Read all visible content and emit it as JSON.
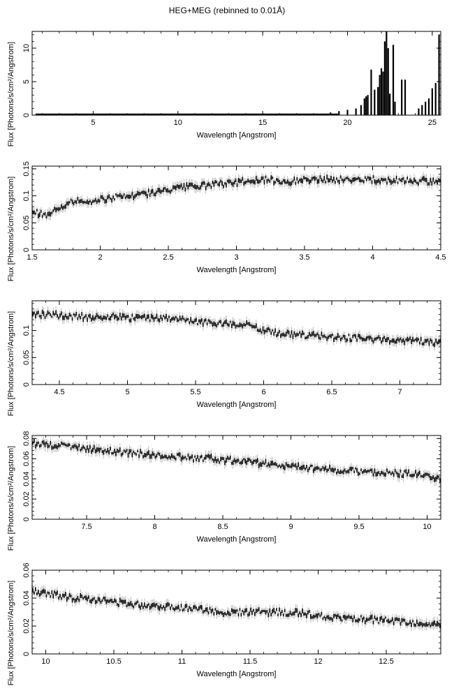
{
  "title": "HEG+MEG (rebinned to 0.01Å)",
  "chart_data": [
    {
      "type": "line",
      "xlabel": "Wavelength [Angstrom]",
      "ylabel": "Flux [Photons/s/cm²/Angstrom]",
      "xlim": [
        1.4,
        25.5
      ],
      "ylim": [
        0,
        12.5
      ],
      "xticks": [
        5,
        10,
        15,
        20,
        25
      ],
      "xtick_labels": [
        "5",
        "10",
        "15",
        "20",
        "25"
      ],
      "yticks": [
        0,
        5,
        10
      ],
      "ytick_labels": [
        "0",
        "5",
        "10"
      ],
      "series": [
        {
          "x": [
            1.5,
            3,
            5,
            7,
            10,
            13,
            15,
            17,
            18,
            19,
            19.5,
            20,
            20.5,
            20.8,
            21,
            21.1,
            21.2,
            21.4,
            21.6,
            21.8,
            21.9,
            22.0,
            22.1,
            22.2,
            22.3,
            22.4,
            22.5,
            22.7,
            22.8,
            23.0,
            23.2,
            23.4,
            23.6,
            24.0,
            24.2,
            24.4,
            24.6,
            24.8,
            25.0,
            25.2,
            25.4
          ],
          "y": [
            0.1,
            0.15,
            0.15,
            0.1,
            0.1,
            0.1,
            0.1,
            0.2,
            0.3,
            0.4,
            0.6,
            0.8,
            1.0,
            1.5,
            2.5,
            2.8,
            3.0,
            6.8,
            3.8,
            4.2,
            6.0,
            7.0,
            6.5,
            11.0,
            12.5,
            10.0,
            3.2,
            10.5,
            2.0,
            0.3,
            5.3,
            5.3,
            0.3,
            0.3,
            1.0,
            1.5,
            2.0,
            2.5,
            4.0,
            4.8,
            12.0
          ]
        }
      ]
    },
    {
      "type": "line",
      "xlabel": "Wavelength [Angstrom]",
      "ylabel": "Flux [Photons/s/cm²/Angstrom]",
      "xlim": [
        1.5,
        4.5
      ],
      "ylim": [
        0,
        0.155
      ],
      "xticks": [
        1.5,
        2,
        2.5,
        3,
        3.5,
        4,
        4.5
      ],
      "xtick_labels": [
        "1.5",
        "2",
        "2.5",
        "3",
        "3.5",
        "4",
        "4.5"
      ],
      "yticks": [
        0,
        0.05,
        0.1,
        0.15
      ],
      "ytick_labels": [
        "0",
        "0.05",
        "0.1",
        "0.15"
      ],
      "series": [
        {
          "x": [
            1.5,
            1.6,
            1.7,
            1.8,
            1.9,
            2.0,
            2.2,
            2.4,
            2.6,
            2.8,
            3.0,
            3.2,
            3.4,
            3.6,
            3.8,
            4.0,
            4.2,
            4.4,
            4.5
          ],
          "y": [
            0.07,
            0.065,
            0.075,
            0.09,
            0.09,
            0.093,
            0.1,
            0.106,
            0.115,
            0.12,
            0.125,
            0.13,
            0.127,
            0.13,
            0.13,
            0.13,
            0.128,
            0.127,
            0.128
          ]
        }
      ]
    },
    {
      "type": "line",
      "xlabel": "Wavelength [Angstrom]",
      "ylabel": "Flux [Photons/s/cm²/Angstrom]",
      "xlim": [
        4.3,
        7.3
      ],
      "ylim": [
        0,
        0.155
      ],
      "xticks": [
        4.5,
        5,
        5.5,
        6,
        6.5,
        7
      ],
      "xtick_labels": [
        "4.5",
        "5",
        "5.5",
        "6",
        "6.5",
        "7"
      ],
      "yticks": [
        0,
        0.05,
        0.1
      ],
      "ytick_labels": [
        "0",
        "0.05",
        "0.1"
      ],
      "series": [
        {
          "x": [
            4.3,
            4.5,
            4.7,
            4.9,
            5.1,
            5.3,
            5.5,
            5.7,
            5.9,
            6.0,
            6.1,
            6.3,
            6.5,
            6.7,
            6.9,
            7.1,
            7.3
          ],
          "y": [
            0.13,
            0.128,
            0.125,
            0.126,
            0.122,
            0.122,
            0.117,
            0.113,
            0.11,
            0.1,
            0.095,
            0.091,
            0.088,
            0.086,
            0.083,
            0.081,
            0.077
          ]
        }
      ]
    },
    {
      "type": "line",
      "xlabel": "Wavelength [Angstrom]",
      "ylabel": "Flux [Photons/s/cm²/Angstrom]",
      "xlim": [
        7.1,
        10.1
      ],
      "ylim": [
        0,
        0.083
      ],
      "xticks": [
        7.5,
        8,
        8.5,
        9,
        9.5,
        10
      ],
      "xtick_labels": [
        "7.5",
        "8",
        "8.5",
        "9",
        "9.5",
        "10"
      ],
      "yticks": [
        0,
        0.02,
        0.04,
        0.06,
        0.08
      ],
      "ytick_labels": [
        "0",
        "0.02",
        "0.04",
        "0.06",
        "0.08"
      ],
      "series": [
        {
          "x": [
            7.1,
            7.3,
            7.5,
            7.7,
            7.9,
            8.1,
            8.2,
            8.4,
            8.6,
            8.8,
            9.0,
            9.2,
            9.4,
            9.6,
            9.8,
            10.0,
            10.1
          ],
          "y": [
            0.075,
            0.073,
            0.07,
            0.067,
            0.065,
            0.063,
            0.061,
            0.06,
            0.058,
            0.055,
            0.053,
            0.05,
            0.048,
            0.047,
            0.045,
            0.044,
            0.04
          ]
        }
      ]
    },
    {
      "type": "line",
      "xlabel": "Wavelength [Angstrom]",
      "ylabel": "Flux [Photons/s/cm²/Angstrom]",
      "xlim": [
        9.9,
        12.9
      ],
      "ylim": [
        0,
        0.06
      ],
      "xticks": [
        10,
        10.5,
        11,
        11.5,
        12,
        12.5
      ],
      "xtick_labels": [
        "10",
        "10.5",
        "11",
        "11.5",
        "12",
        "12.5"
      ],
      "yticks": [
        0,
        0.02,
        0.04,
        0.06
      ],
      "ytick_labels": [
        "0",
        "0.02",
        "0.04",
        "0.06"
      ],
      "series": [
        {
          "x": [
            9.9,
            10.0,
            10.1,
            10.2,
            10.3,
            10.5,
            10.7,
            10.9,
            11.1,
            11.3,
            11.5,
            11.7,
            11.9,
            12.1,
            12.3,
            12.5,
            12.7,
            12.9
          ],
          "y": [
            0.045,
            0.043,
            0.042,
            0.04,
            0.04,
            0.037,
            0.035,
            0.034,
            0.032,
            0.03,
            0.03,
            0.03,
            0.029,
            0.026,
            0.025,
            0.024,
            0.022,
            0.02
          ]
        }
      ]
    }
  ]
}
